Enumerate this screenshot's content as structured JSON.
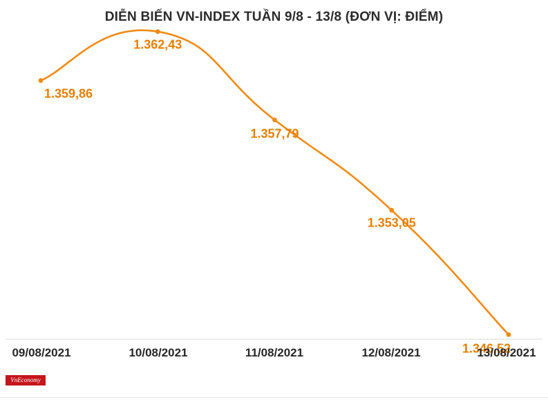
{
  "chart_data": {
    "type": "line",
    "title": "DIỄN BIẾN VN-INDEX TUẦN 9/8 - 13/8 (ĐƠN VỊ: ĐIỂM)",
    "categories": [
      "09/08/2021",
      "10/08/2021",
      "11/08/2021",
      "12/08/2021",
      "13/08/2021"
    ],
    "series": [
      {
        "values": [
          1359.86,
          1362.43,
          1357.79,
          1353.05,
          1346.52
        ]
      }
    ],
    "data_labels": [
      "1.359,86",
      "1.362,43",
      "1.357,79",
      "1.353,05",
      "1.346,52"
    ],
    "ylim": [
      1342,
      1363
    ],
    "grid": false,
    "line_color": "#f08a12",
    "label_color": "#e67e00"
  },
  "logo": {
    "text": "VnEconomy",
    "color": "#c4161c"
  }
}
